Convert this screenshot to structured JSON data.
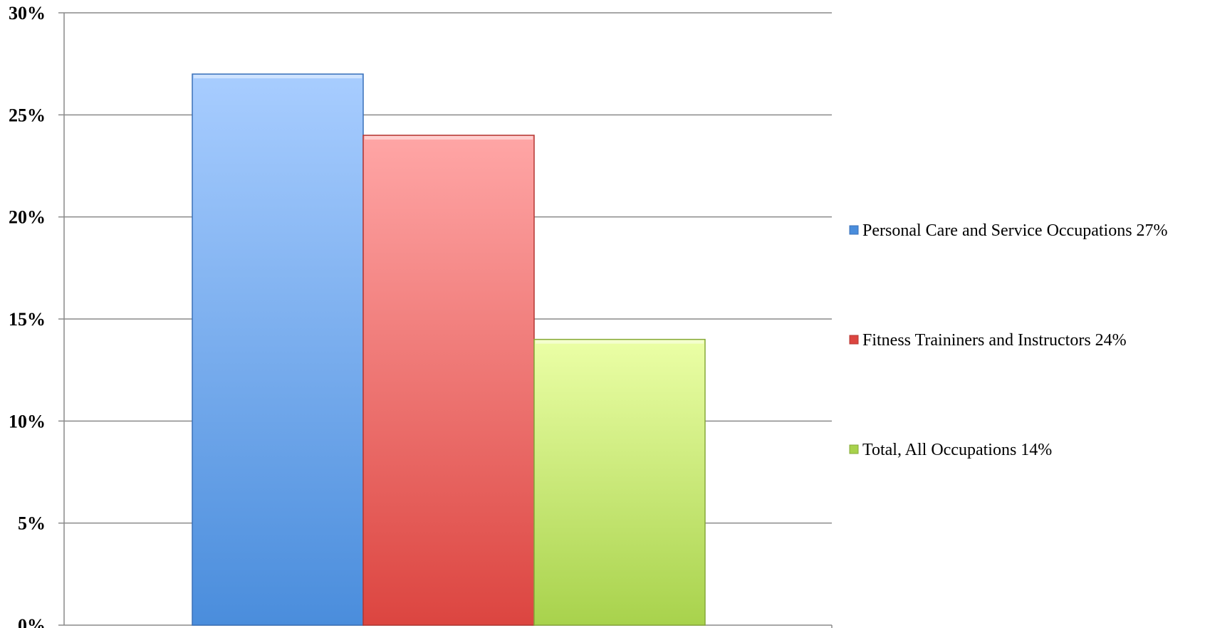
{
  "chart_data": {
    "type": "bar",
    "title": "",
    "xlabel": "",
    "ylabel": "",
    "ylim": [
      0,
      30
    ],
    "yticks": [
      "0%",
      "5%",
      "10%",
      "15%",
      "20%",
      "25%",
      "30%"
    ],
    "ytick_values": [
      0,
      5,
      10,
      15,
      20,
      25,
      30
    ],
    "grid": true,
    "legend_position": "right",
    "series": [
      {
        "name": "Personal Care and Service Occupations 27%",
        "value": 27,
        "color": "#4a8ddc",
        "color_light": "#a8cdff",
        "edge": "#3a70b8"
      },
      {
        "name": "Fitness Traininers and Instructors 24%",
        "value": 24,
        "color": "#dc4540",
        "color_light": "#ffa6a6",
        "edge": "#b43632"
      },
      {
        "name": "Total, All Occupations 14%",
        "value": 14,
        "color": "#a8d24c",
        "color_light": "#ebffa6",
        "edge": "#86a83a"
      }
    ]
  }
}
